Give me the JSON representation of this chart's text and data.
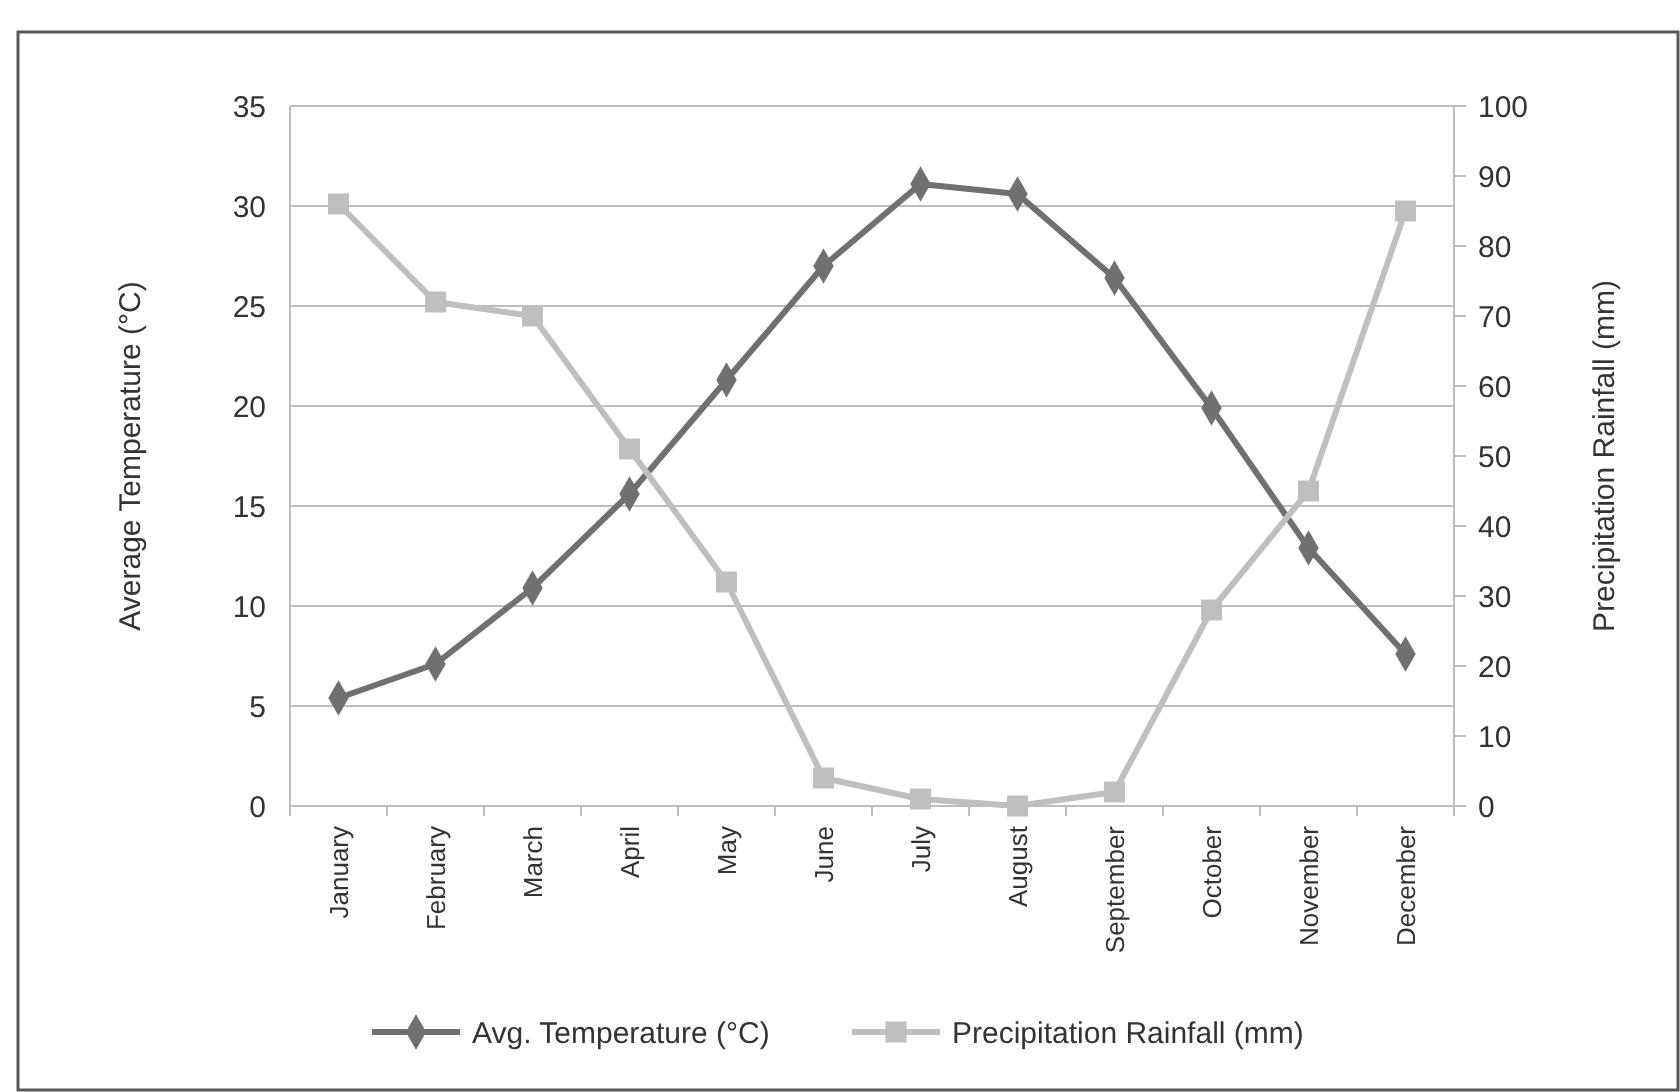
{
  "chart_data": {
    "type": "line",
    "ylabel": "Average Temperature (°C)",
    "y2label": "Precipitation Rainfall (mm)",
    "categories": [
      "January",
      "February",
      "March",
      "April",
      "May",
      "June",
      "July",
      "August",
      "September",
      "October",
      "November",
      "December"
    ],
    "series": [
      {
        "name": "Avg. Temperature (°C)",
        "color": "#707070",
        "marker": "diamond",
        "values": [
          5.4,
          7.1,
          10.9,
          15.6,
          21.3,
          27.0,
          31.1,
          30.6,
          26.4,
          19.9,
          12.9,
          7.6
        ]
      },
      {
        "name": "Precipitation Rainfall (mm)",
        "color": "#bfbfbf",
        "marker": "square",
        "axis": "y2",
        "values": [
          86,
          72,
          70,
          51,
          32,
          4,
          1,
          0,
          2,
          28,
          45,
          85
        ]
      }
    ],
    "ylim": [
      0,
      35
    ],
    "yticks": [
      0,
      5,
      10,
      15,
      20,
      25,
      30,
      35
    ],
    "y2lim": [
      0,
      100
    ],
    "y2ticks": [
      0,
      10,
      20,
      30,
      40,
      50,
      60,
      70,
      80,
      90,
      100
    ],
    "grid": "y",
    "legend": "bottom",
    "line_style": "solid"
  }
}
